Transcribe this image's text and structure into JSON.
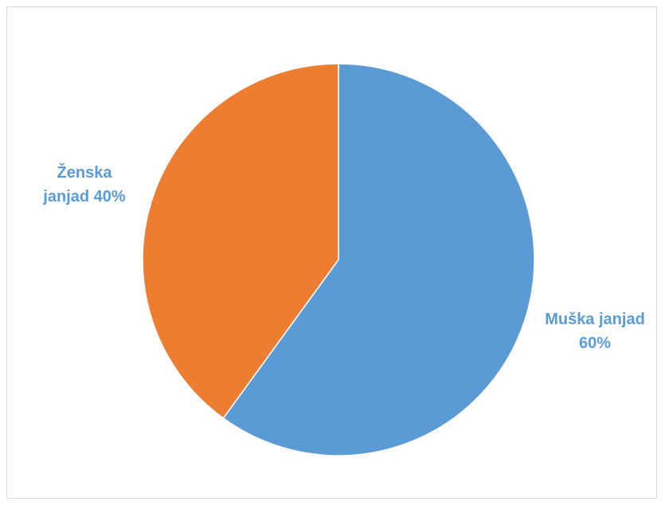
{
  "chart_data": {
    "type": "pie",
    "title": "",
    "slices": [
      {
        "label": "Muška janjad",
        "value": 60,
        "display": "60%",
        "color": "#5b9bd5"
      },
      {
        "label": "Ženska janjad",
        "value": 40,
        "display": "40%",
        "color": "#ed7d31"
      }
    ],
    "labels": {
      "female_line1": "Ženska",
      "female_line2": "janjad 40%",
      "male_line1": "Muška janjad",
      "male_line2": "60%"
    },
    "label_color": "#5b9bd5",
    "slice_border_color": "#ffffff",
    "legend": "none"
  }
}
